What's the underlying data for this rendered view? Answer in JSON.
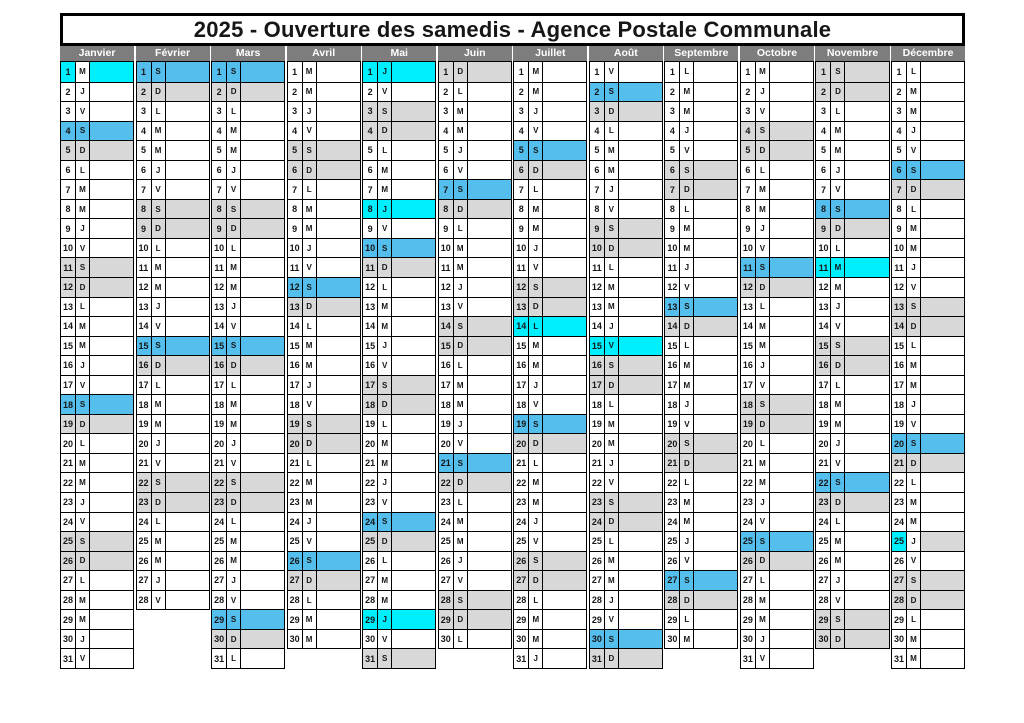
{
  "title": "2025 - Ouverture des samedis - Agence Postale Communale",
  "header": {
    "bg": "#7d7d7d",
    "text_color": "#ffffff"
  },
  "palette": {
    "white": "#ffffff",
    "blue": "#54BEEC",
    "cyan": "#00EFFF",
    "gray": "#D8D8D8"
  },
  "highlight_styles": {
    "b": {
      "num": "blue",
      "letter": "blue",
      "bar": "blue",
      "bold": true
    },
    "g": {
      "num": "gray",
      "letter": "gray",
      "bar": "gray",
      "bold": false
    },
    "c": {
      "num": "cyan",
      "letter": "cyan",
      "bar": "cyan",
      "bold": true
    },
    "c1": {
      "num": "cyan",
      "letter": "white",
      "bar": "cyan",
      "bold": true
    },
    "c2": {
      "num": "cyan",
      "letter": "white",
      "bar": "gray",
      "bold": true
    }
  },
  "months": [
    {
      "name": "Janvier",
      "days_in_month": 31,
      "weekdays": "MJVSDLMMJVSDLMMJVSDLMMJVSDLMMJV",
      "highlights": {
        "1": "c1",
        "4": "b",
        "5": "g",
        "11": "g",
        "12": "g",
        "18": "b",
        "19": "g",
        "25": "g",
        "26": "g"
      }
    },
    {
      "name": "Février",
      "days_in_month": 28,
      "weekdays": "SDLMMJVSDLMMJVSDLMMJVSDLMMJV",
      "highlights": {
        "1": "b",
        "2": "g",
        "8": "g",
        "9": "g",
        "15": "b",
        "16": "g",
        "22": "g",
        "23": "g"
      }
    },
    {
      "name": "Mars",
      "days_in_month": 31,
      "weekdays": "SDLMMJVSDLMMJVSDLMMJVSDLMMJVSDL",
      "highlights": {
        "1": "b",
        "2": "g",
        "8": "g",
        "9": "g",
        "15": "b",
        "16": "g",
        "22": "g",
        "23": "g",
        "29": "b",
        "30": "g"
      }
    },
    {
      "name": "Avril",
      "days_in_month": 30,
      "weekdays": "MMJVSDLMMJVSDLMMJVSDLMMJVSDLMM",
      "highlights": {
        "5": "g",
        "6": "g",
        "12": "b",
        "13": "g",
        "19": "g",
        "20": "g",
        "26": "b",
        "27": "g"
      }
    },
    {
      "name": "Mai",
      "days_in_month": 31,
      "weekdays": "JVSDLMMJVSDLMMJVSDLMMJVSDLMMJVS",
      "highlights": {
        "1": "c",
        "3": "g",
        "4": "g",
        "8": "c",
        "10": "b",
        "11": "g",
        "17": "g",
        "18": "g",
        "24": "b",
        "25": "g",
        "29": "c",
        "31": "g"
      }
    },
    {
      "name": "Juin",
      "days_in_month": 30,
      "weekdays": "DLMMJVSDLMMJVSDLMMJVSDLMMJVSDL",
      "highlights": {
        "1": "g",
        "7": "b",
        "8": "g",
        "14": "g",
        "15": "g",
        "21": "b",
        "22": "g",
        "28": "g",
        "29": "g"
      }
    },
    {
      "name": "Juillet",
      "days_in_month": 31,
      "weekdays": "MMJVSDLMMJVSDLMMJVSDLMMJVSDLMMJ",
      "highlights": {
        "5": "b",
        "6": "g",
        "12": "g",
        "13": "g",
        "14": "c",
        "19": "b",
        "20": "g",
        "26": "g",
        "27": "g"
      }
    },
    {
      "name": "Août",
      "days_in_month": 31,
      "weekdays": "VSDLMMJVSDLMMJVSDLMMJVSDLMMJVSD",
      "highlights": {
        "2": "b",
        "3": "g",
        "9": "g",
        "10": "g",
        "15": "c",
        "16": "g",
        "17": "g",
        "23": "g",
        "24": "g",
        "30": "b",
        "31": "g"
      }
    },
    {
      "name": "Septembre",
      "days_in_month": 30,
      "weekdays": "LMMJVSDLMMJVSDLMMJVSDLMMJVSDLM",
      "highlights": {
        "6": "g",
        "7": "g",
        "13": "b",
        "14": "g",
        "20": "g",
        "21": "g",
        "27": "b",
        "28": "g"
      }
    },
    {
      "name": "Octobre",
      "days_in_month": 31,
      "weekdays": "MJVSDLMMJVSDLMMJVSDLMMJVSDLMMJV",
      "highlights": {
        "4": "g",
        "5": "g",
        "11": "b",
        "12": "g",
        "18": "g",
        "19": "g",
        "25": "b",
        "26": "g"
      }
    },
    {
      "name": "Novembre",
      "days_in_month": 30,
      "weekdays": "SDLMMJVSDLMMJVSDLMMJVSDLMMJVSD",
      "highlights": {
        "1": "g",
        "2": "g",
        "8": "b",
        "9": "g",
        "11": "c",
        "15": "g",
        "16": "g",
        "22": "b",
        "23": "g",
        "29": "g",
        "30": "g"
      }
    },
    {
      "name": "Décembre",
      "days_in_month": 31,
      "weekdays": "LMMJVSDLMMJVSDLMMJVSDLMMJVSDLMM",
      "highlights": {
        "6": "b",
        "7": "g",
        "13": "g",
        "14": "g",
        "20": "b",
        "21": "g",
        "25": "c2",
        "27": "g",
        "28": "g"
      }
    }
  ]
}
